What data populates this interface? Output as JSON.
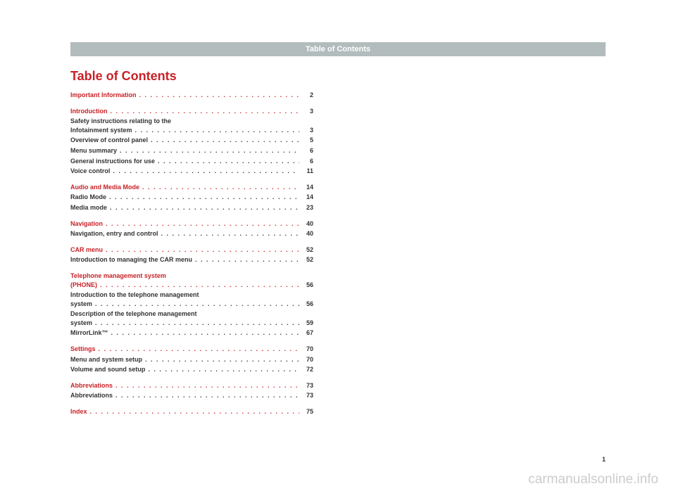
{
  "header": "Table of Contents",
  "title": "Table of Contents",
  "colors": {
    "accent": "#c92127",
    "header_bg": "#b3bcbc",
    "header_text": "#ffffff",
    "body_text": "#333333",
    "watermark": "#cccccc"
  },
  "typography": {
    "title_size": 18,
    "entry_size": 9,
    "header_size": 11
  },
  "toc": [
    {
      "label": "Important Information",
      "page": "2",
      "level": "major"
    },
    {
      "label": "Introduction",
      "page": "3",
      "level": "major"
    },
    {
      "label_line1": "Safety instructions relating to the",
      "label_line2": "Infotainment system",
      "page": "3",
      "level": "minor"
    },
    {
      "label": "Overview of control panel",
      "page": "5",
      "level": "minor"
    },
    {
      "label": "Menu summary",
      "page": "6",
      "level": "minor"
    },
    {
      "label": "General instructions for use",
      "page": "6",
      "level": "minor"
    },
    {
      "label": "Voice control",
      "page": "11",
      "level": "minor"
    },
    {
      "label": "Audio and Media Mode",
      "page": "14",
      "level": "major"
    },
    {
      "label": "Radio Mode",
      "page": "14",
      "level": "minor"
    },
    {
      "label": "Media mode",
      "page": "23",
      "level": "minor"
    },
    {
      "label": "Navigation",
      "page": "40",
      "level": "major"
    },
    {
      "label": "Navigation, entry and control",
      "page": "40",
      "level": "minor"
    },
    {
      "label": "CAR menu",
      "page": "52",
      "level": "major"
    },
    {
      "label": "Introduction to managing the CAR menu",
      "page": "52",
      "level": "minor"
    },
    {
      "label_line1": "Telephone management system",
      "label_line2": "(PHONE)",
      "page": "56",
      "level": "major"
    },
    {
      "label_line1": "Introduction to the telephone management",
      "label_line2": "system",
      "page": "56",
      "level": "minor"
    },
    {
      "label_line1": "Description of the telephone management",
      "label_line2": "system",
      "page": "59",
      "level": "minor"
    },
    {
      "label": "MirrorLink™",
      "page": "67",
      "level": "minor"
    },
    {
      "label": "Settings",
      "page": "70",
      "level": "major"
    },
    {
      "label": "Menu and system setup",
      "page": "70",
      "level": "minor"
    },
    {
      "label": "Volume and sound setup",
      "page": "72",
      "level": "minor"
    },
    {
      "label": "Abbreviations",
      "page": "73",
      "level": "major"
    },
    {
      "label": "Abbreviations",
      "page": "73",
      "level": "minor"
    },
    {
      "label": "Index",
      "page": "75",
      "level": "major"
    }
  ],
  "page_number": "1",
  "watermark": "carmanualsonline.info"
}
